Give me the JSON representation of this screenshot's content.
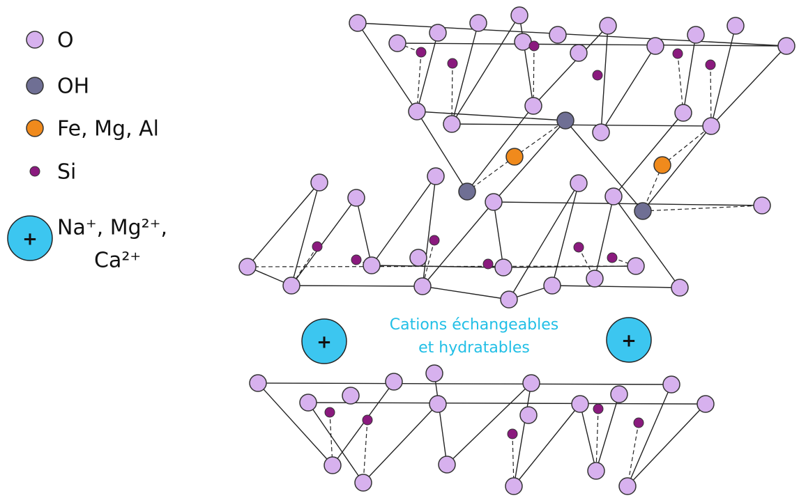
{
  "legend": {
    "items": [
      {
        "label": "O"
      },
      {
        "label": "OH"
      },
      {
        "label": "Fe, Mg, Al"
      },
      {
        "label": "Si"
      }
    ],
    "cation": {
      "symbol": "+",
      "lines": [
        "Na⁺, Mg²⁺,",
        "Ca²⁺"
      ]
    }
  },
  "interlayer": {
    "lines": [
      "Cations échangeables",
      "et hydratables"
    ]
  }
}
